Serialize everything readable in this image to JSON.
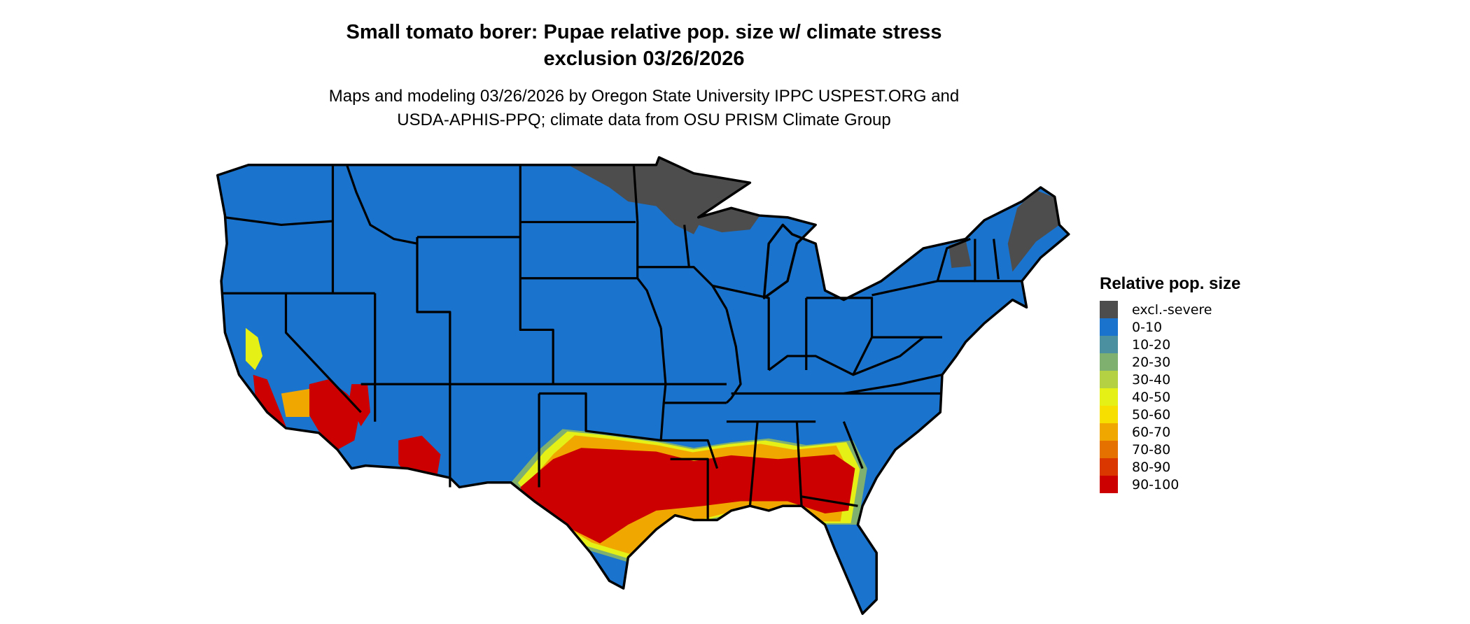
{
  "title_line1": "Small tomato borer: Pupae relative pop. size w/ climate stress",
  "title_line2": "exclusion 03/26/2026",
  "subtitle_line1": "Maps and modeling 03/26/2026 by Oregon State University IPPC USPEST.ORG and",
  "subtitle_line2": "USDA-APHIS-PPQ; climate data from OSU PRISM Climate Group",
  "chart_data": {
    "type": "map",
    "region": "Contiguous United States (state boundaries)",
    "legend": {
      "title": "Relative pop. size",
      "placement": "right",
      "items": [
        {
          "label": "excl.-severe",
          "color": "#4d4d4d"
        },
        {
          "label": "0-10",
          "color": "#1a73cc"
        },
        {
          "label": "10-20",
          "color": "#4a90a0"
        },
        {
          "label": "20-30",
          "color": "#7fb070"
        },
        {
          "label": "30-40",
          "color": "#b3d143"
        },
        {
          "label": "40-50",
          "color": "#e5f016"
        },
        {
          "label": "50-60",
          "color": "#f7e000"
        },
        {
          "label": "60-70",
          "color": "#f0a800"
        },
        {
          "label": "70-80",
          "color": "#e57200"
        },
        {
          "label": "80-90",
          "color": "#d93600"
        },
        {
          "label": "90-100",
          "color": "#cc0000"
        }
      ]
    }
  }
}
